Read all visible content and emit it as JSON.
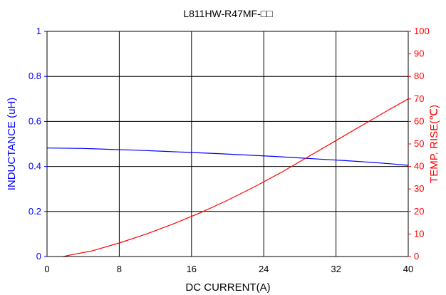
{
  "chart_data": {
    "type": "line",
    "title": "L811HW-R47MF-□□",
    "xlabel": "DC CURRENT(A)",
    "ylabel": "INDUCTANCE (uH)",
    "y2label": "TEMP. RISE(℃)",
    "xlim": [
      0,
      40
    ],
    "ylim": [
      0,
      1
    ],
    "y2lim": [
      0,
      100
    ],
    "x_ticks": [
      "0",
      "8",
      "16",
      "24",
      "32",
      "40"
    ],
    "y_ticks": [
      "0",
      "0.2",
      "0.4",
      "0.6",
      "0.8",
      "1"
    ],
    "y2_ticks": [
      "0",
      "10",
      "20",
      "30",
      "40",
      "50",
      "60",
      "70",
      "80",
      "90",
      "100"
    ],
    "grid": true,
    "series": [
      {
        "axis": "left",
        "color": "#0000ff",
        "x": [
          0,
          4,
          7,
          10,
          13,
          16,
          19,
          22,
          25,
          28,
          30,
          33,
          36,
          38,
          40
        ],
        "values": [
          0.482,
          0.48,
          0.476,
          0.472,
          0.467,
          0.462,
          0.457,
          0.451,
          0.445,
          0.438,
          0.433,
          0.426,
          0.418,
          0.412,
          0.405
        ]
      },
      {
        "axis": "right",
        "color": "#ff0000",
        "x": [
          1.8,
          3,
          5,
          8,
          11,
          14,
          17,
          20,
          23,
          26,
          29,
          32,
          35,
          38,
          40
        ],
        "values": [
          0,
          1,
          2.5,
          6,
          10,
          14.5,
          19.5,
          25,
          31,
          37.5,
          44.5,
          51.5,
          58.5,
          65.5,
          70
        ]
      }
    ]
  },
  "colors": {
    "left_axis": "#0000ff",
    "right_axis": "#ff0000",
    "frame": "#000000"
  }
}
